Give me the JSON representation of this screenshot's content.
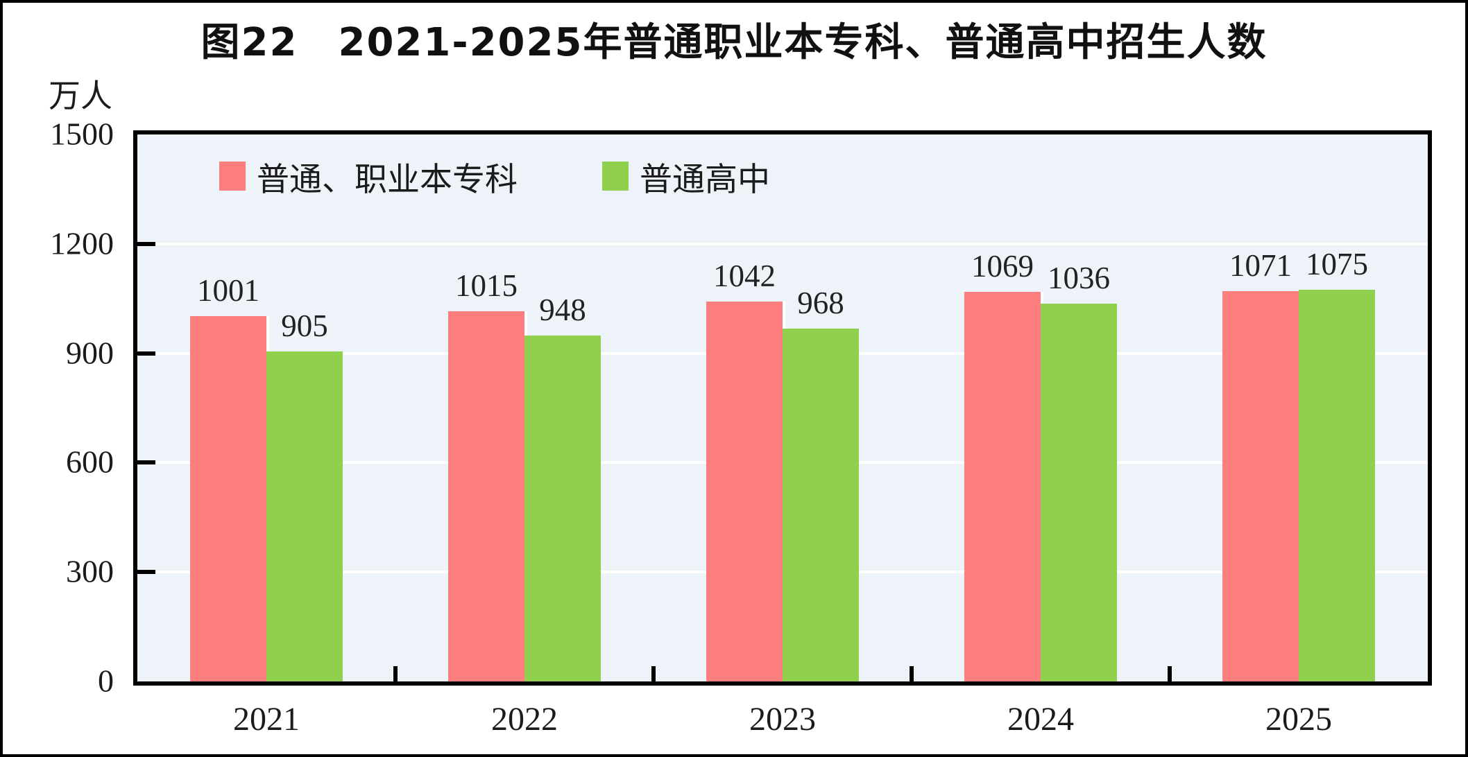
{
  "figure": {
    "title": "图22　2021-2025年普通职业本专科、普通高中招生人数",
    "unit_label": "万人"
  },
  "chart_data": {
    "type": "bar",
    "title": "图22　2021-2025年普通职业本专科、普通高中招生人数",
    "xlabel": "",
    "ylabel": "万人",
    "categories": [
      "2021",
      "2022",
      "2023",
      "2024",
      "2025"
    ],
    "series": [
      {
        "name": "普通、职业本专科",
        "color": "#FC7E7E",
        "values": [
          1001,
          1015,
          1042,
          1069,
          1071
        ]
      },
      {
        "name": "普通高中",
        "color": "#8FD04E",
        "values": [
          905,
          948,
          968,
          1036,
          1075
        ]
      }
    ],
    "ylim": [
      0,
      1500
    ],
    "yticks": [
      0,
      300,
      600,
      900,
      1200,
      1500
    ],
    "grid": true,
    "gridline_color": "#FFFFFF",
    "plot_background": "#EDF3F8",
    "legend_position": "top-left",
    "bar_value_labels": true
  }
}
